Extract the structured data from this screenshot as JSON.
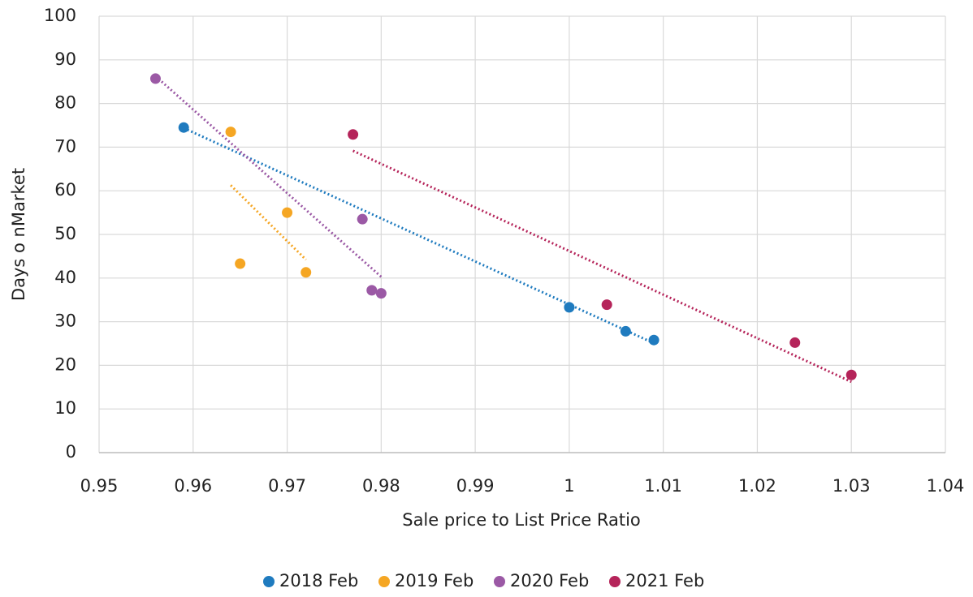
{
  "chart_data": {
    "type": "scatter",
    "x_label": "Sale price to List Price Ratio",
    "y_label": "Days o nMarket",
    "xlim": [
      0.95,
      1.04
    ],
    "xticks": [
      0.95,
      0.96,
      0.97,
      0.98,
      0.99,
      1,
      1.01,
      1.02,
      1.03,
      1.04
    ],
    "ylim": [
      0,
      100
    ],
    "yticks": [
      0,
      10,
      20,
      30,
      40,
      50,
      60,
      70,
      80,
      90,
      100
    ],
    "grid": true,
    "trendline": true,
    "legend": "bottom",
    "series": [
      {
        "name": "2018 Feb",
        "color": "#1f7bbf",
        "x": [
          0.959,
          1.0,
          1.006,
          1.009
        ],
        "values": [
          74.5,
          33.3,
          27.8,
          25.8
        ]
      },
      {
        "name": "2019 Feb",
        "color": "#f5a623",
        "x": [
          0.964,
          0.965,
          0.97,
          0.972
        ],
        "values": [
          73.5,
          43.3,
          55,
          41.3
        ]
      },
      {
        "name": "2020 Feb",
        "color": "#9b59a5",
        "x": [
          0.956,
          0.978,
          0.979,
          0.98
        ],
        "values": [
          85.7,
          53.5,
          37.2,
          36.5
        ]
      },
      {
        "name": "2021 Feb",
        "color": "#b5245a",
        "x": [
          0.977,
          1.004,
          1.024,
          1.03
        ],
        "values": [
          72.9,
          33.9,
          25.2,
          17.8
        ]
      }
    ]
  }
}
